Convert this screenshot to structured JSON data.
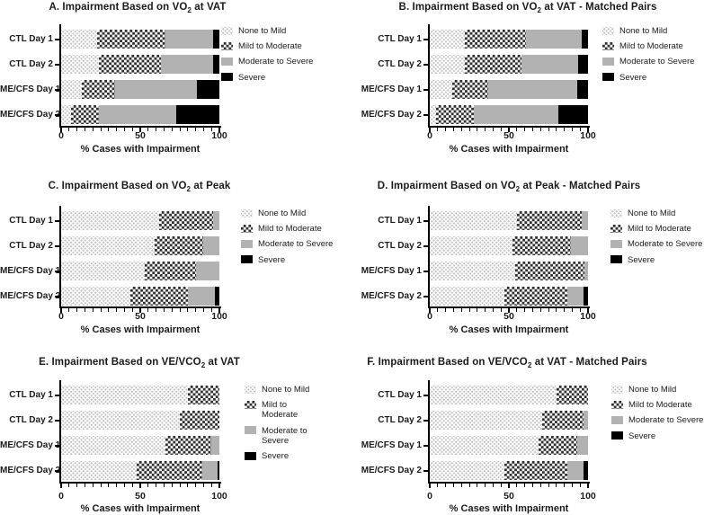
{
  "figure": {
    "description": "Six-panel figure of horizontal stacked bar charts showing percent of cases with impairment",
    "colors": {
      "background": "#ffffff",
      "axis": "#000000",
      "none_to_mild_pattern": "#bfbfbf",
      "mild_to_moderate_pattern": "#303030",
      "moderate_to_severe": "#b2b2b2",
      "severe": "#000000"
    },
    "legend_labels": [
      "None to Mild",
      "Mild to Moderate",
      "Moderate to Severe",
      "Severe"
    ],
    "legend_patterns": [
      "dots",
      "check",
      "gray",
      "black"
    ]
  },
  "chart_data": [
    {
      "panel": "A",
      "type": "bar",
      "orientation": "horizontal-stacked",
      "title_pre": "A. Impairment Based on VO",
      "title_sub": "2",
      "title_post": " at VAT",
      "categories": [
        "CTL Day 1",
        "CTL Day 2",
        "ME/CFS Day 1",
        "ME/CFS Day 2"
      ],
      "series": [
        {
          "name": "None to Mild",
          "values": [
            23,
            24,
            13,
            6
          ]
        },
        {
          "name": "Mild to Moderate",
          "values": [
            43,
            39,
            21,
            18
          ]
        },
        {
          "name": "Moderate to Severe",
          "values": [
            30,
            33,
            52,
            49
          ]
        },
        {
          "name": "Severe",
          "values": [
            4,
            4,
            14,
            27
          ]
        }
      ],
      "xlabel": "% Cases with Impairment",
      "xlim": [
        0,
        100
      ],
      "xticks": [
        0,
        50,
        100
      ],
      "minor_tick_step": 5,
      "legend_position": "right",
      "legend_wrapped": false
    },
    {
      "panel": "B",
      "type": "bar",
      "orientation": "horizontal-stacked",
      "title_pre": "B. Impairment Based on VO",
      "title_sub": "2",
      "title_post": " at VAT - Matched Pairs",
      "categories": [
        "CTL Day 1",
        "CTL Day 2",
        "ME/CFS Day 1",
        "ME/CFS Day 2"
      ],
      "series": [
        {
          "name": "None to Mild",
          "values": [
            22,
            22,
            14,
            4
          ]
        },
        {
          "name": "Mild to Moderate",
          "values": [
            39,
            36,
            23,
            24
          ]
        },
        {
          "name": "Moderate to Severe",
          "values": [
            35,
            36,
            56,
            53
          ]
        },
        {
          "name": "Severe",
          "values": [
            4,
            6,
            7,
            19
          ]
        }
      ],
      "xlabel": "% Cases with Impairment",
      "xlim": [
        0,
        100
      ],
      "xticks": [
        0,
        50,
        100
      ],
      "minor_tick_step": 5,
      "legend_position": "right",
      "legend_wrapped": false
    },
    {
      "panel": "C",
      "type": "bar",
      "orientation": "horizontal-stacked",
      "title_pre": "C. Impairment Based on VO",
      "title_sub": "2",
      "title_post": " at Peak",
      "categories": [
        "CTL Day 1",
        "CTL Day 2",
        "ME/CFS Day 1",
        "ME/CFS Day 2"
      ],
      "series": [
        {
          "name": "None to Mild",
          "values": [
            62,
            59,
            53,
            44
          ]
        },
        {
          "name": "Mild to Moderate",
          "values": [
            34,
            31,
            32,
            36
          ]
        },
        {
          "name": "Moderate to Severe",
          "values": [
            4,
            10,
            15,
            17
          ]
        },
        {
          "name": "Severe",
          "values": [
            0,
            0,
            0,
            3
          ]
        }
      ],
      "xlabel": "% Cases with Impairment",
      "xlim": [
        0,
        100
      ],
      "xticks": [
        0,
        50,
        100
      ],
      "minor_tick_step": 5,
      "legend_position": "right",
      "legend_wrapped": false
    },
    {
      "panel": "D",
      "type": "bar",
      "orientation": "horizontal-stacked",
      "title_pre": "D. Impairment Based on VO",
      "title_sub": "2",
      "title_post": " at Peak - Matched Pairs",
      "categories": [
        "CTL Day 1",
        "CTL Day 2",
        "ME/CFS Day 1",
        "ME/CFS Day 2"
      ],
      "series": [
        {
          "name": "None to Mild",
          "values": [
            55,
            52,
            54,
            47
          ]
        },
        {
          "name": "Mild to Moderate",
          "values": [
            41,
            37,
            44,
            40
          ]
        },
        {
          "name": "Moderate to Severe",
          "values": [
            4,
            11,
            2,
            10
          ]
        },
        {
          "name": "Severe",
          "values": [
            0,
            0,
            0,
            3
          ]
        }
      ],
      "xlabel": "% Cases with Impairment",
      "xlim": [
        0,
        100
      ],
      "xticks": [
        0,
        50,
        100
      ],
      "minor_tick_step": 5,
      "legend_position": "right",
      "legend_wrapped": false
    },
    {
      "panel": "E",
      "type": "bar",
      "orientation": "horizontal-stacked",
      "title_pre": "E. Impairment Based on VE/VCO",
      "title_sub": "2",
      "title_post": " at VAT",
      "categories": [
        "CTL Day 1",
        "CTL Day 2",
        "ME/CFS Day 1",
        "ME/CFS Day 2"
      ],
      "series": [
        {
          "name": "None to Mild",
          "values": [
            80,
            75,
            66,
            48
          ]
        },
        {
          "name": "Mild to Moderate",
          "values": [
            20,
            25,
            29,
            41
          ]
        },
        {
          "name": "Moderate to Severe",
          "values": [
            0,
            0,
            5,
            10
          ]
        },
        {
          "name": "Severe",
          "values": [
            0,
            0,
            0,
            1
          ]
        }
      ],
      "xlabel": "% Cases with Impairment",
      "xlim": [
        0,
        100
      ],
      "xticks": [
        0,
        50,
        100
      ],
      "minor_tick_step": 5,
      "legend_position": "right",
      "legend_wrapped": true
    },
    {
      "panel": "F",
      "type": "bar",
      "orientation": "horizontal-stacked",
      "title_pre": "F. Impairment Based on VE/VCO",
      "title_sub": "2",
      "title_post": " at VAT - Matched Pairs",
      "categories": [
        "CTL Day 1",
        "CTL Day 2",
        "ME/CFS Day 1",
        "ME/CFS Day 2"
      ],
      "series": [
        {
          "name": "None to Mild",
          "values": [
            80,
            71,
            69,
            47
          ]
        },
        {
          "name": "Mild to Moderate",
          "values": [
            20,
            26,
            24,
            40
          ]
        },
        {
          "name": "Moderate to Severe",
          "values": [
            0,
            3,
            7,
            10
          ]
        },
        {
          "name": "Severe",
          "values": [
            0,
            0,
            0,
            3
          ]
        }
      ],
      "xlabel": "% Cases with Impairment",
      "xlim": [
        0,
        100
      ],
      "xticks": [
        0,
        50,
        100
      ],
      "minor_tick_step": 5,
      "legend_position": "right",
      "legend_wrapped": false
    }
  ]
}
